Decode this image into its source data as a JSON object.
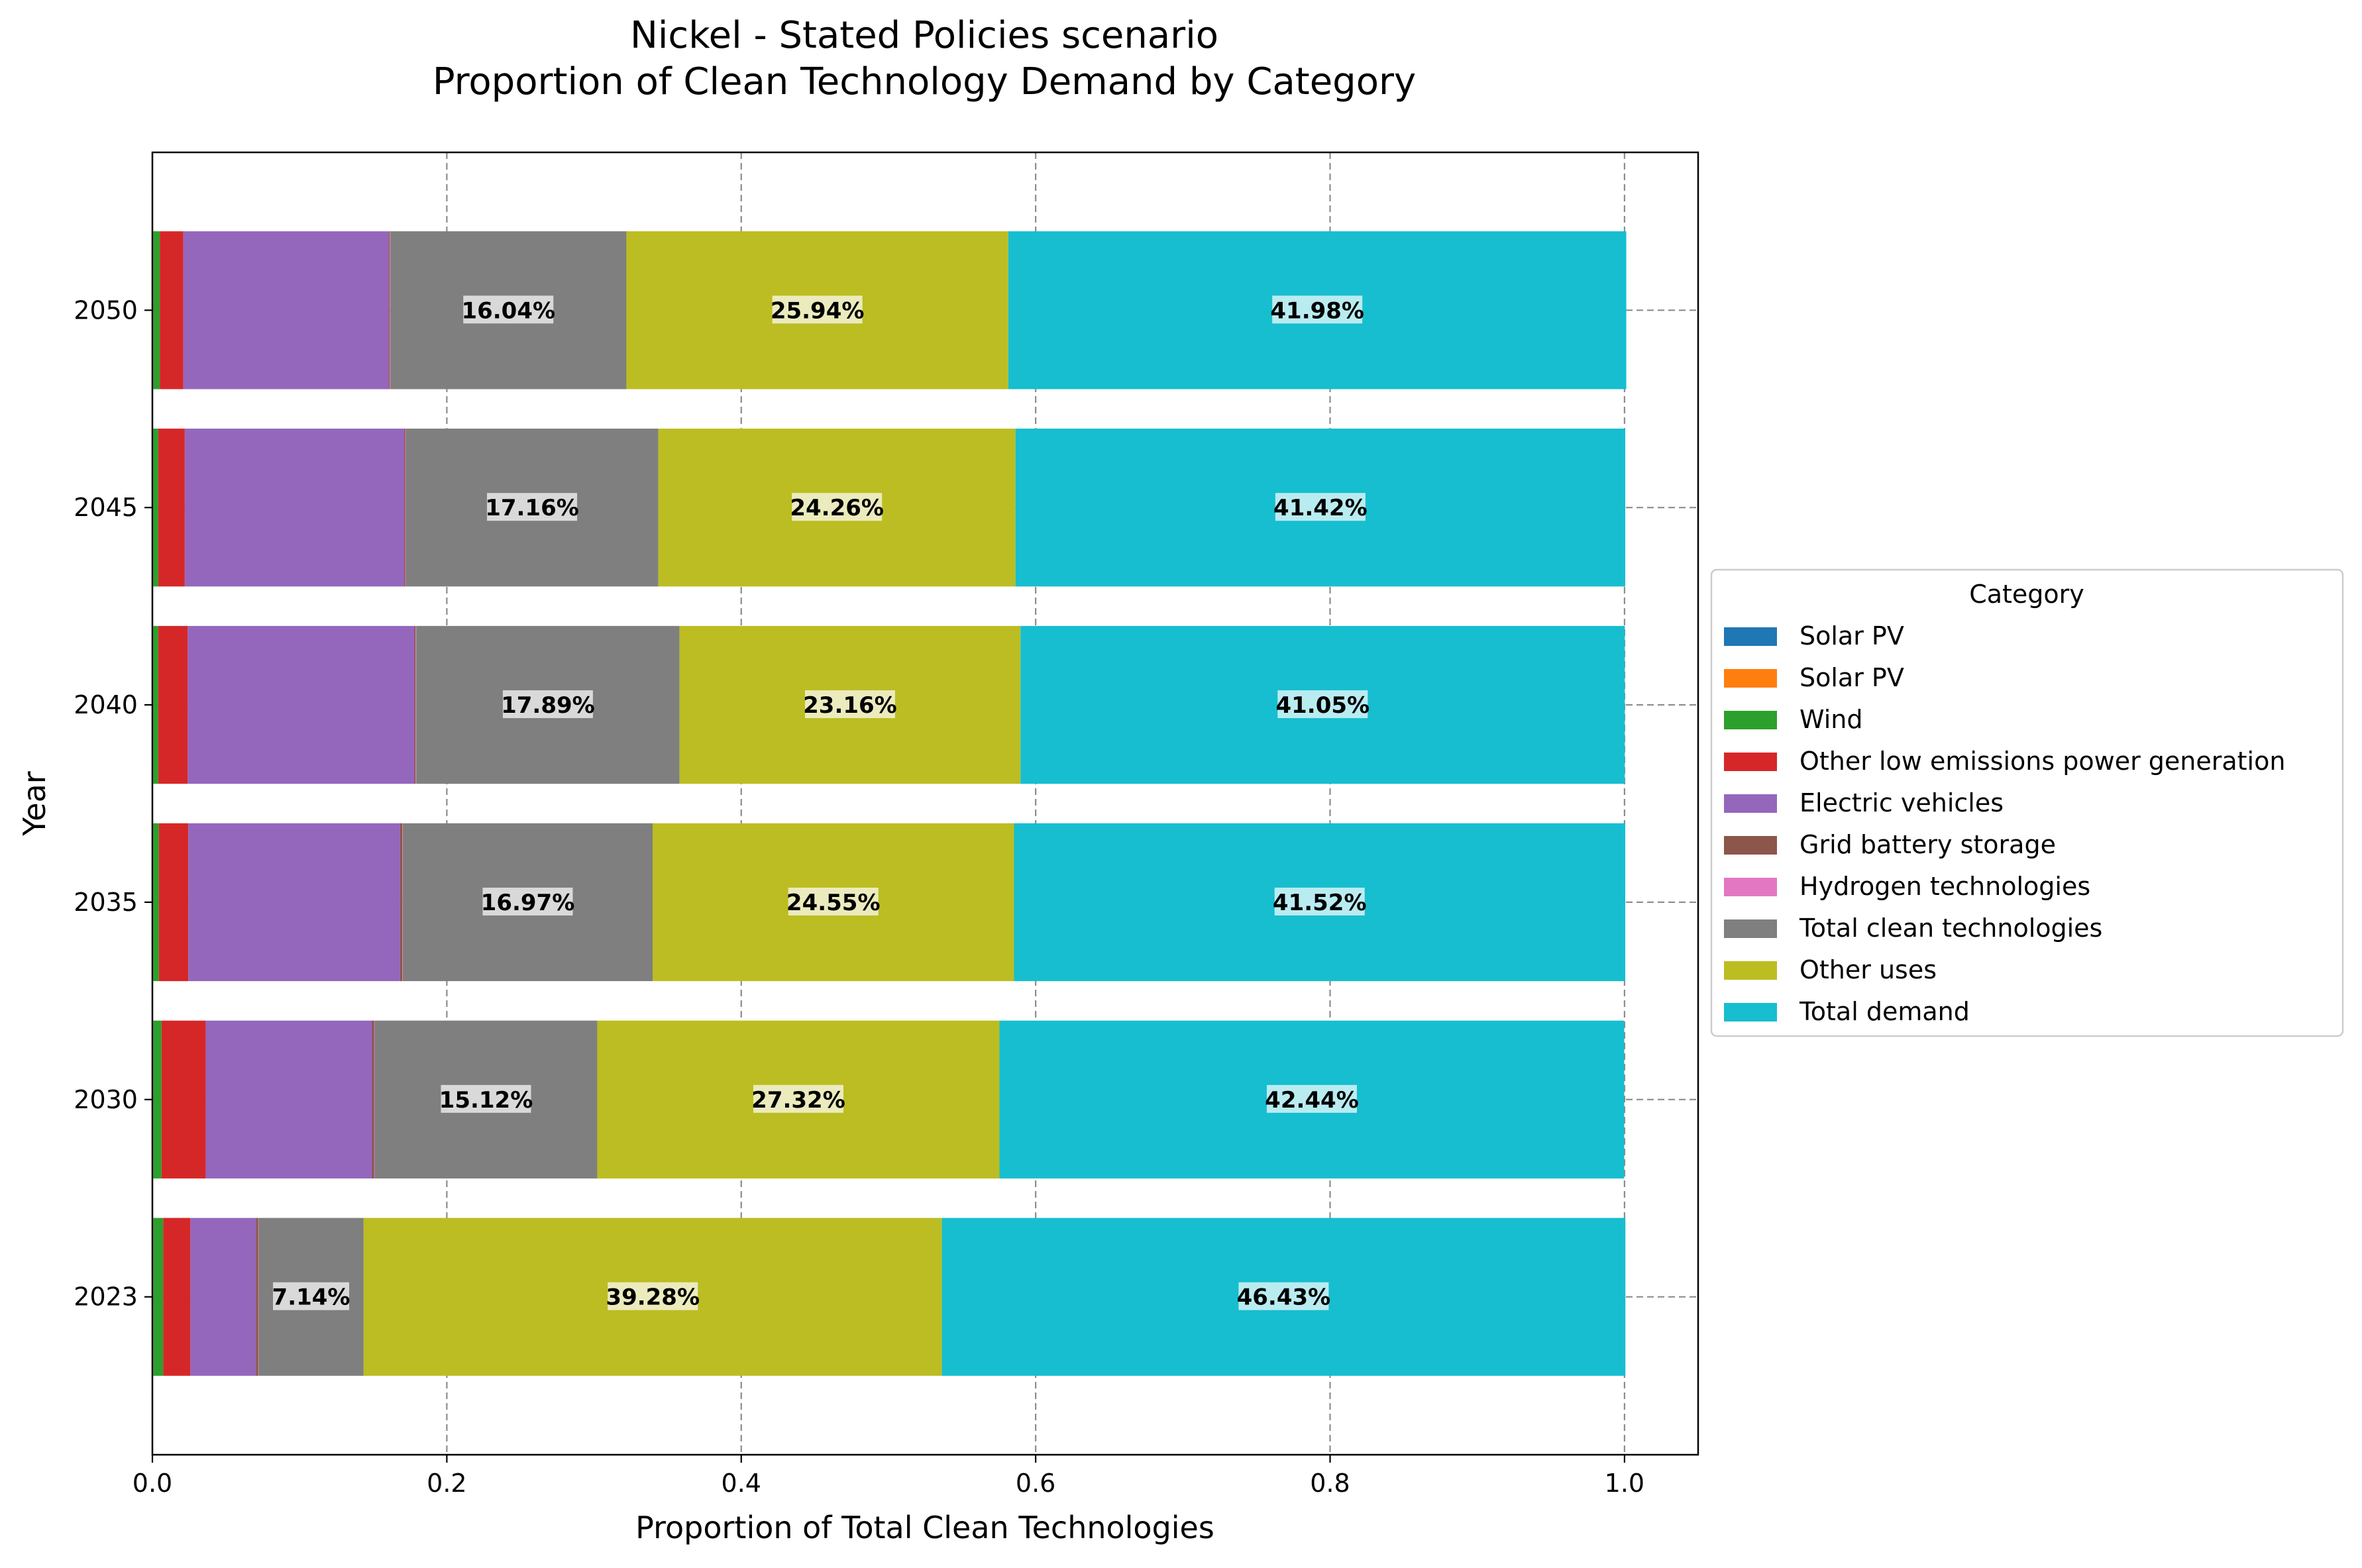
{
  "chart_data": {
    "type": "bar",
    "orientation": "horizontal",
    "stacked": true,
    "title_line1": "Nickel - Stated Policies scenario",
    "title_line2": "Proportion of Clean Technology Demand by Category",
    "xlabel": "Proportion of Total Clean Technologies",
    "ylabel": "Year",
    "xlim": [
      0.0,
      1.05
    ],
    "x_ticks": [
      "0.0",
      "0.2",
      "0.4",
      "0.6",
      "0.8",
      "1.0"
    ],
    "x_tick_values": [
      0.0,
      0.2,
      0.4,
      0.6,
      0.8,
      1.0
    ],
    "categories": [
      "2023",
      "2030",
      "2035",
      "2040",
      "2045",
      "2050"
    ],
    "grid": true,
    "legend_title": "Category",
    "legend_position": "center-right outside",
    "series": [
      {
        "name": "Solar PV",
        "color": "#1f77b4",
        "values": [
          0.0005,
          0.0005,
          0.0005,
          0.0005,
          0.0005,
          0.0005
        ]
      },
      {
        "name": "Solar PV",
        "color": "#ff7f0e",
        "values": [
          0.0002,
          0.0002,
          0.0002,
          0.0002,
          0.0002,
          0.0002
        ]
      },
      {
        "name": "Wind",
        "color": "#2ca02c",
        "values": [
          0.0066,
          0.0055,
          0.0037,
          0.0033,
          0.0033,
          0.0043
        ]
      },
      {
        "name": "Other low emissions power generation",
        "color": "#d62728",
        "values": [
          0.0185,
          0.03,
          0.02,
          0.02,
          0.018,
          0.016
        ]
      },
      {
        "name": "Electric vehicles",
        "color": "#9467bd",
        "values": [
          0.0445,
          0.113,
          0.1438,
          0.154,
          0.149,
          0.1395
        ]
      },
      {
        "name": "Grid battery storage",
        "color": "#8c564b",
        "values": [
          0.0015,
          0.0015,
          0.0015,
          0.0008,
          0.0007,
          0.0007
        ]
      },
      {
        "name": "Hydrogen technologies",
        "color": "#e377c2",
        "values": [
          0.0003,
          0.0003,
          0.0004,
          0.0004,
          0.0004,
          0.0004
        ]
      },
      {
        "name": "Total clean technologies",
        "color": "#7f7f7f",
        "values": [
          0.0714,
          0.1512,
          0.1697,
          0.1789,
          0.1716,
          0.1604
        ],
        "labels": [
          "7.14%",
          "15.12%",
          "16.97%",
          "17.89%",
          "17.16%",
          "16.04%"
        ]
      },
      {
        "name": "Other uses",
        "color": "#bcbd22",
        "values": [
          0.3928,
          0.2732,
          0.2455,
          0.2316,
          0.2426,
          0.2594
        ],
        "labels": [
          "39.28%",
          "27.32%",
          "24.55%",
          "23.16%",
          "24.26%",
          "25.94%"
        ]
      },
      {
        "name": "Total demand",
        "color": "#17becf",
        "values": [
          0.4643,
          0.4244,
          0.4152,
          0.4105,
          0.4142,
          0.4198
        ],
        "labels": [
          "46.43%",
          "42.44%",
          "41.52%",
          "41.05%",
          "41.42%",
          "41.98%"
        ]
      }
    ]
  }
}
